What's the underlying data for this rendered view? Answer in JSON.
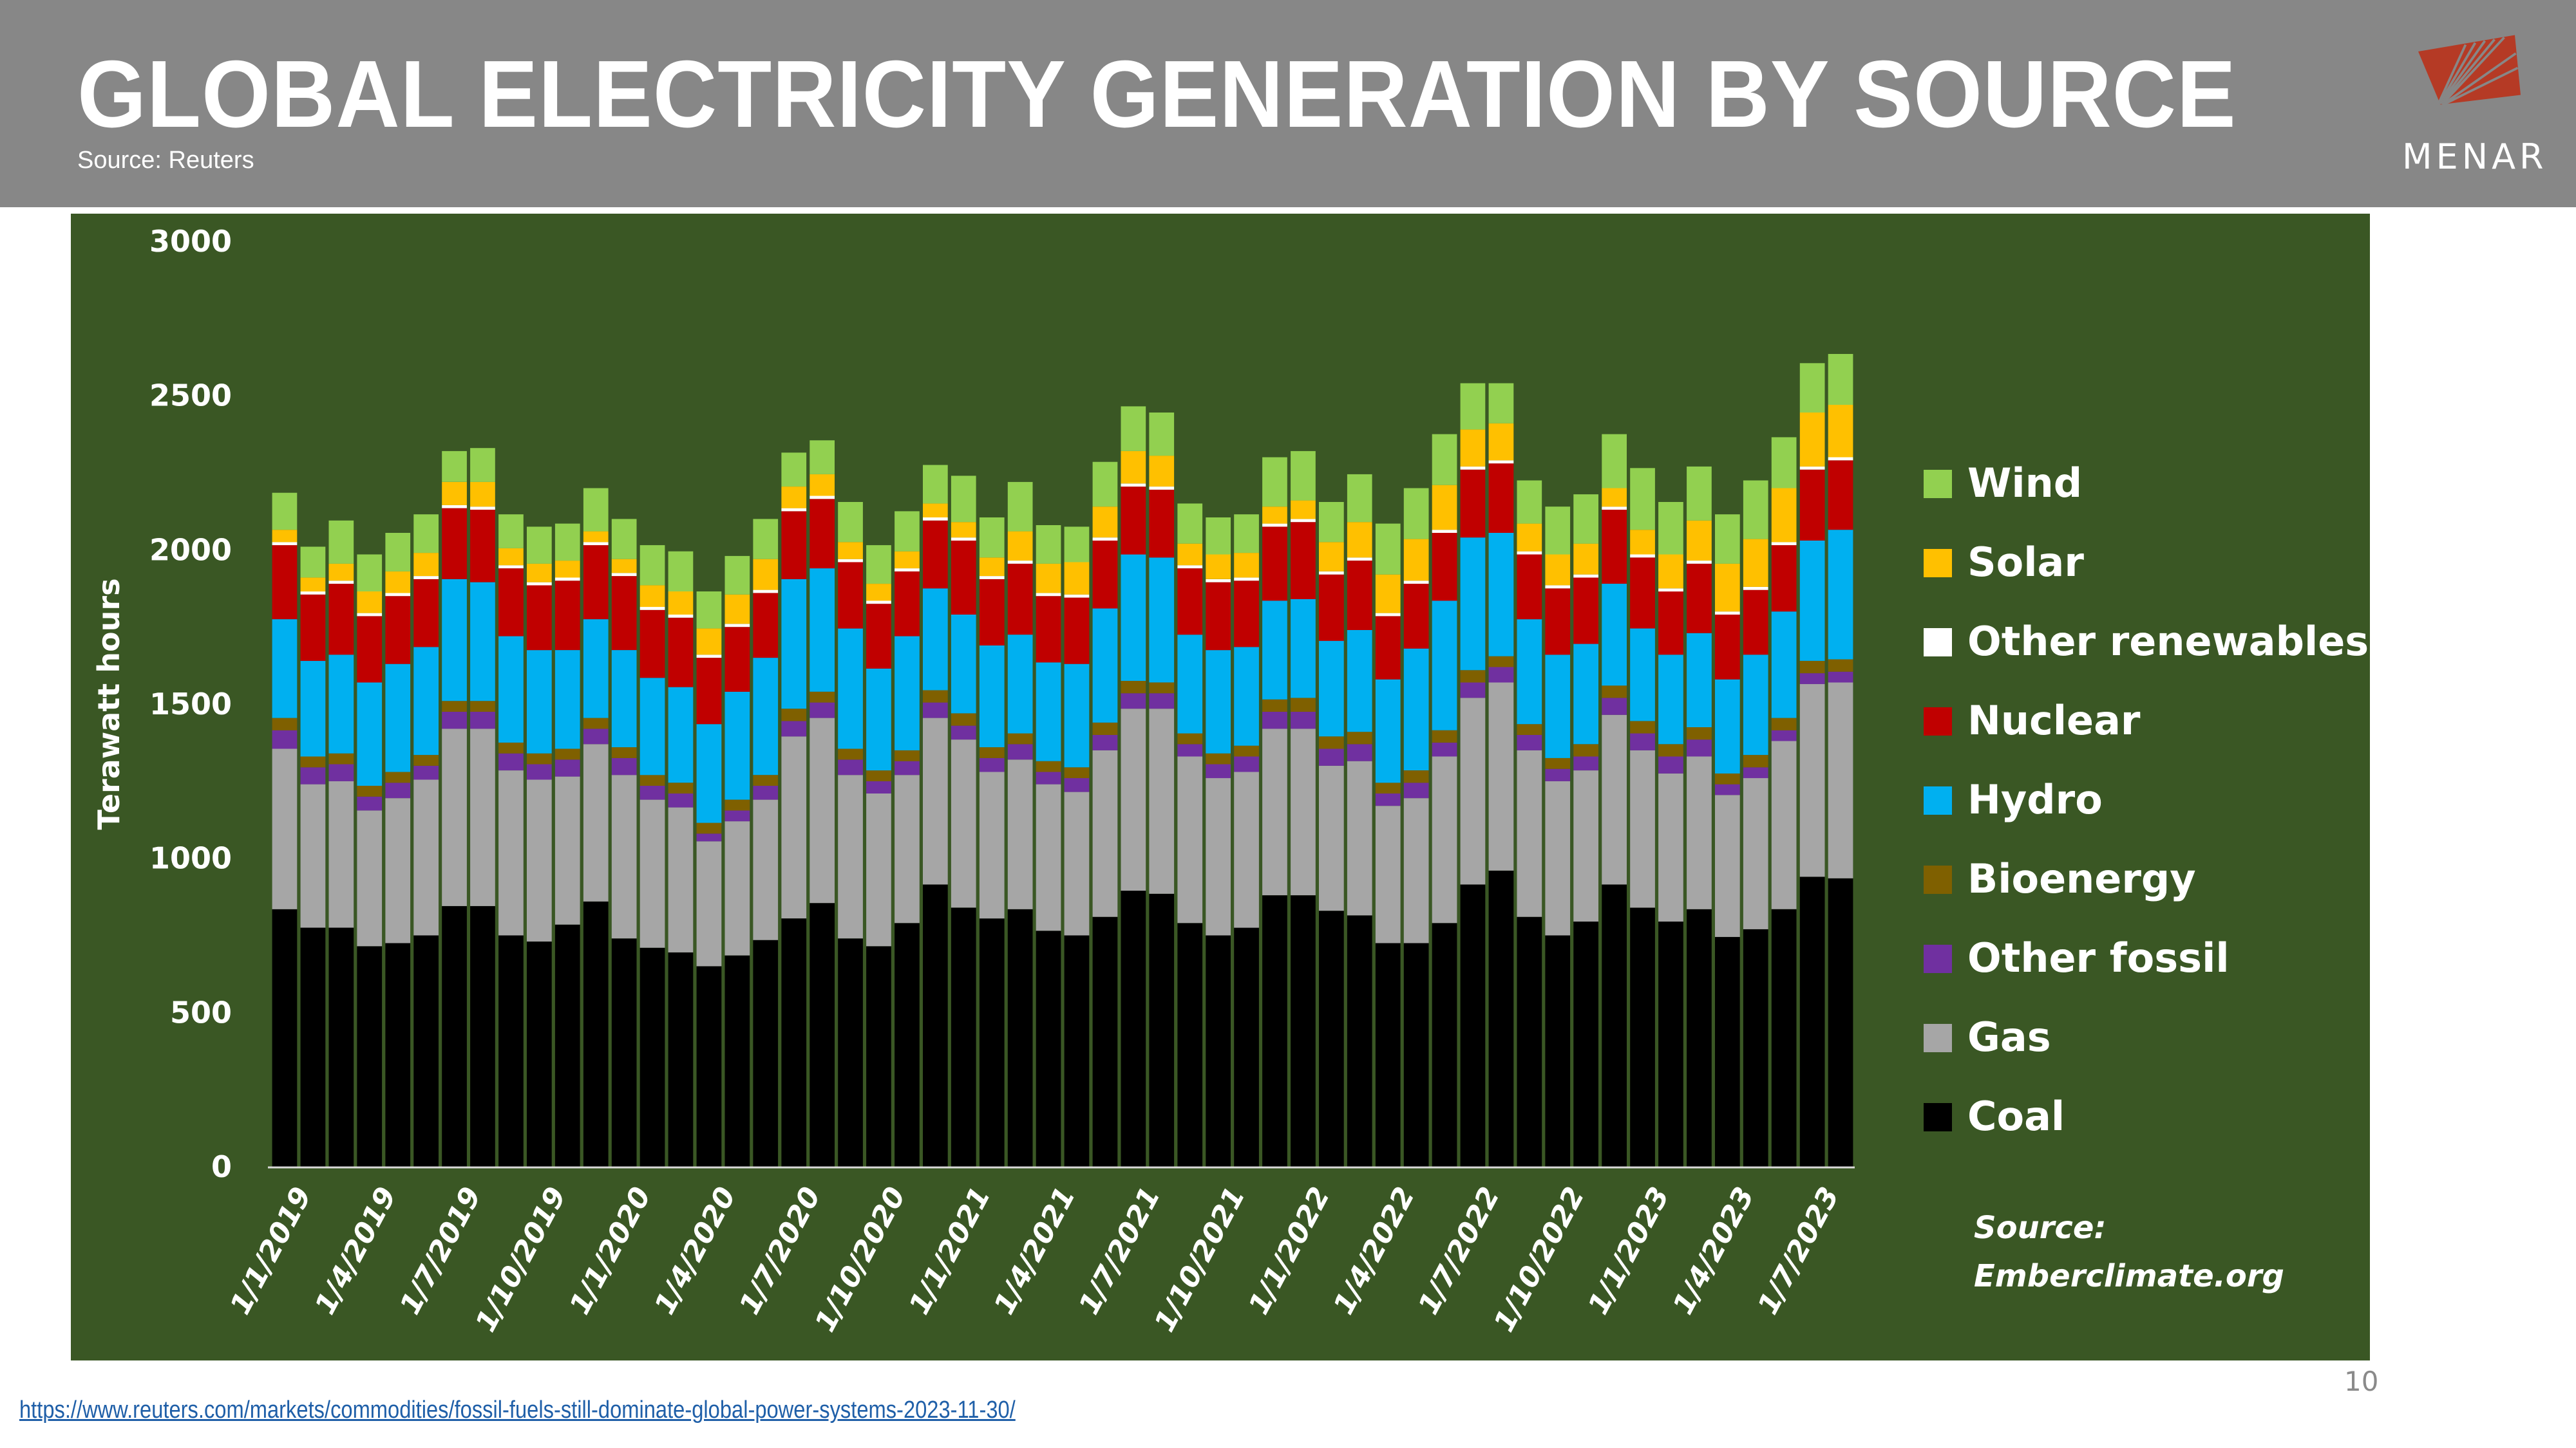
{
  "header": {
    "title": "GLOBAL ELECTRICITY GENERATION BY SOURCE",
    "subtitle": "Source: Reuters",
    "logo_text": "MENAR",
    "background_color": "#878787",
    "logo_color": "#b53a25"
  },
  "footer": {
    "link": "https://www.reuters.com/markets/commodities/fossil-fuels-still-dominate-global-power-systems-2023-11-30/",
    "page_number": "10"
  },
  "chart_data": {
    "type": "bar",
    "stacked": true,
    "title": "",
    "xlabel": "",
    "ylabel": "Terawatt hours",
    "ylim": [
      0,
      3000
    ],
    "yticks": [
      0,
      500,
      1000,
      1500,
      2000,
      2500,
      3000
    ],
    "grid": false,
    "legend_position": "right",
    "background_color": "#3a5724",
    "source_note": [
      "Source:",
      "Emberclimate.org"
    ],
    "x_tick_labels": [
      "1/1/2019",
      "1/4/2019",
      "1/7/2019",
      "1/10/2019",
      "1/1/2020",
      "1/4/2020",
      "1/7/2020",
      "1/10/2020",
      "1/1/2021",
      "1/4/2021",
      "1/7/2021",
      "1/10/2021",
      "1/1/2022",
      "1/4/2022",
      "1/7/2022",
      "1/10/2022",
      "1/1/2023",
      "1/4/2023",
      "1/7/2023"
    ],
    "x_tick_every": 3,
    "categories": [
      "2019-01",
      "2019-02",
      "2019-03",
      "2019-04",
      "2019-05",
      "2019-06",
      "2019-07",
      "2019-08",
      "2019-09",
      "2019-10",
      "2019-11",
      "2019-12",
      "2020-01",
      "2020-02",
      "2020-03",
      "2020-04",
      "2020-05",
      "2020-06",
      "2020-07",
      "2020-08",
      "2020-09",
      "2020-10",
      "2020-11",
      "2020-12",
      "2021-01",
      "2021-02",
      "2021-03",
      "2021-04",
      "2021-05",
      "2021-06",
      "2021-07",
      "2021-08",
      "2021-09",
      "2021-10",
      "2021-11",
      "2021-12",
      "2022-01",
      "2022-02",
      "2022-03",
      "2022-04",
      "2022-05",
      "2022-06",
      "2022-07",
      "2022-08",
      "2022-09",
      "2022-10",
      "2022-11",
      "2022-12",
      "2023-01",
      "2023-02",
      "2023-03",
      "2023-04",
      "2023-05",
      "2023-06",
      "2023-07",
      "2023-08"
    ],
    "legend_order": [
      "Wind",
      "Solar",
      "Other renewables",
      "Nuclear",
      "Hydro",
      "Bioenergy",
      "Other fossil",
      "Gas",
      "Coal"
    ],
    "series": [
      {
        "name": "Coal",
        "color": "#000000",
        "values": [
          835,
          775,
          775,
          715,
          725,
          750,
          845,
          845,
          750,
          730,
          785,
          860,
          740,
          710,
          695,
          650,
          685,
          735,
          805,
          855,
          740,
          715,
          790,
          915,
          840,
          805,
          835,
          765,
          750,
          810,
          895,
          885,
          790,
          750,
          775,
          880,
          880,
          830,
          815,
          725,
          725,
          790,
          915,
          960,
          810,
          750,
          795,
          915,
          840,
          795,
          835,
          745,
          770,
          835,
          940,
          935
        ]
      },
      {
        "name": "Gas",
        "color": "#a6a6a6",
        "values": [
          520,
          465,
          475,
          440,
          470,
          505,
          575,
          575,
          535,
          525,
          480,
          510,
          530,
          480,
          470,
          405,
          435,
          455,
          590,
          600,
          530,
          495,
          480,
          540,
          545,
          475,
          485,
          475,
          465,
          540,
          590,
          600,
          540,
          510,
          505,
          540,
          540,
          470,
          500,
          445,
          470,
          540,
          605,
          610,
          540,
          500,
          490,
          550,
          510,
          480,
          495,
          460,
          490,
          545,
          625,
          635
        ]
      },
      {
        "name": "Other fossil",
        "color": "#7030a0",
        "values": [
          60,
          55,
          55,
          45,
          50,
          45,
          55,
          55,
          55,
          50,
          55,
          50,
          55,
          45,
          45,
          25,
          35,
          45,
          50,
          50,
          50,
          40,
          45,
          50,
          45,
          45,
          50,
          40,
          45,
          50,
          50,
          50,
          40,
          45,
          50,
          55,
          55,
          55,
          55,
          40,
          50,
          45,
          50,
          50,
          50,
          40,
          45,
          55,
          55,
          55,
          55,
          35,
          35,
          35,
          35,
          35
        ]
      },
      {
        "name": "Bioenergy",
        "color": "#7f6000",
        "values": [
          40,
          35,
          35,
          35,
          35,
          35,
          35,
          35,
          35,
          35,
          35,
          35,
          35,
          35,
          35,
          35,
          35,
          35,
          40,
          35,
          35,
          35,
          35,
          40,
          40,
          35,
          35,
          35,
          35,
          40,
          40,
          35,
          35,
          35,
          35,
          40,
          45,
          40,
          40,
          35,
          40,
          40,
          40,
          35,
          35,
          35,
          40,
          40,
          40,
          40,
          40,
          35,
          40,
          40,
          40,
          40
        ]
      },
      {
        "name": "Hydro",
        "color": "#00b0f0",
        "values": [
          320,
          310,
          320,
          335,
          350,
          350,
          395,
          385,
          345,
          335,
          320,
          320,
          315,
          315,
          310,
          320,
          350,
          380,
          420,
          400,
          390,
          330,
          370,
          330,
          320,
          330,
          320,
          320,
          335,
          370,
          410,
          405,
          320,
          335,
          320,
          320,
          320,
          310,
          330,
          335,
          395,
          420,
          430,
          400,
          340,
          335,
          325,
          330,
          300,
          290,
          305,
          305,
          325,
          345,
          390,
          420
        ]
      },
      {
        "name": "Nuclear",
        "color": "#c00000",
        "values": [
          240,
          215,
          230,
          215,
          220,
          220,
          230,
          235,
          220,
          210,
          225,
          240,
          240,
          220,
          225,
          215,
          210,
          210,
          220,
          225,
          215,
          210,
          210,
          220,
          240,
          215,
          230,
          215,
          215,
          220,
          220,
          220,
          215,
          220,
          215,
          240,
          250,
          215,
          225,
          205,
          210,
          220,
          220,
          225,
          210,
          215,
          215,
          240,
          230,
          205,
          225,
          210,
          210,
          215,
          230,
          225
        ]
      },
      {
        "name": "Other renewables",
        "color": "#ffffff",
        "values": [
          10,
          10,
          10,
          10,
          10,
          10,
          10,
          10,
          10,
          10,
          10,
          10,
          10,
          10,
          10,
          10,
          10,
          10,
          10,
          10,
          10,
          10,
          10,
          10,
          10,
          10,
          10,
          10,
          10,
          10,
          10,
          10,
          10,
          10,
          10,
          10,
          10,
          10,
          10,
          10,
          10,
          10,
          10,
          10,
          10,
          10,
          10,
          10,
          10,
          10,
          10,
          10,
          10,
          10,
          10,
          10
        ]
      },
      {
        "name": "Solar",
        "color": "#ffc000",
        "values": [
          40,
          45,
          55,
          70,
          70,
          75,
          75,
          80,
          55,
          60,
          55,
          35,
          45,
          70,
          75,
          85,
          95,
          100,
          70,
          70,
          55,
          55,
          55,
          45,
          50,
          60,
          95,
          95,
          105,
          100,
          105,
          100,
          70,
          80,
          80,
          55,
          60,
          95,
          115,
          125,
          135,
          145,
          120,
          120,
          90,
          100,
          100,
          60,
          80,
          110,
          130,
          155,
          155,
          175,
          175,
          170
        ]
      },
      {
        "name": "Wind",
        "color": "#92d050",
        "values": [
          120,
          100,
          140,
          120,
          125,
          125,
          100,
          110,
          110,
          120,
          120,
          140,
          130,
          130,
          130,
          120,
          125,
          130,
          110,
          110,
          130,
          125,
          130,
          125,
          150,
          130,
          160,
          125,
          115,
          145,
          145,
          140,
          130,
          120,
          125,
          160,
          160,
          130,
          155,
          165,
          165,
          165,
          150,
          130,
          140,
          155,
          160,
          175,
          200,
          170,
          175,
          160,
          190,
          165,
          160,
          165
        ]
      }
    ]
  }
}
